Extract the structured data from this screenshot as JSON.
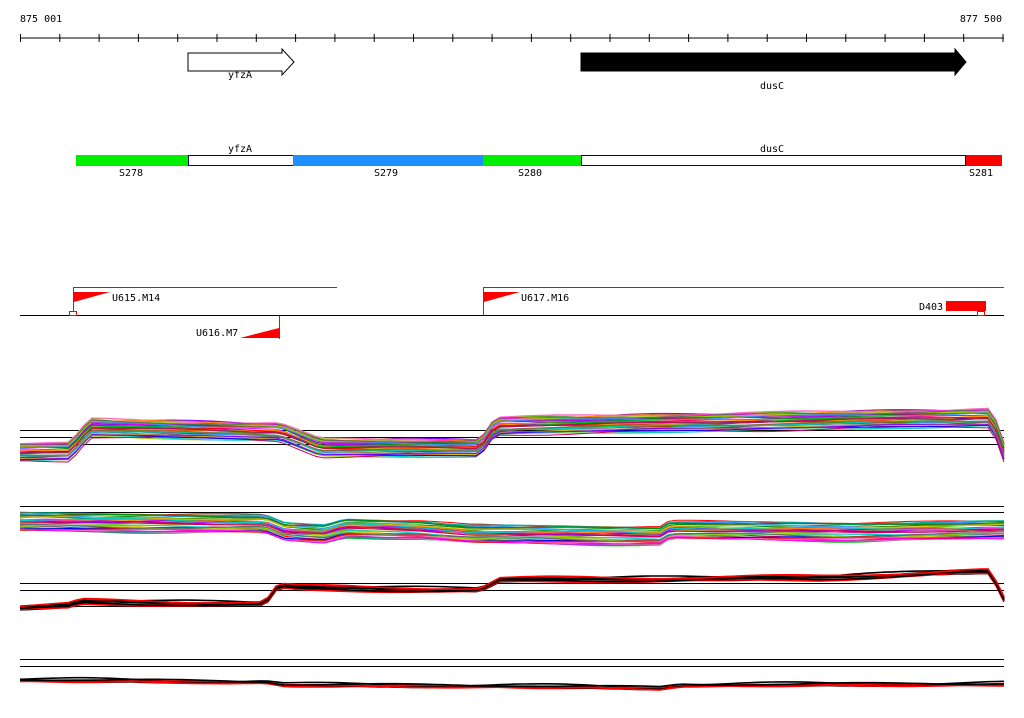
{
  "ruler": {
    "start_label": "875 001",
    "end_label": "877 500",
    "start": 875001,
    "end": 877500
  },
  "genes": [
    {
      "name": "yfzA",
      "strand": "+",
      "filled": false
    },
    {
      "name": "dusC",
      "strand": "+",
      "filled": true
    }
  ],
  "segments": [
    {
      "label": "S278",
      "color": "#00ee00"
    },
    {
      "label": "yfzA",
      "color": "#ffffff",
      "gene": true
    },
    {
      "label": "S279",
      "color": "#1e90ff"
    },
    {
      "label": "S280",
      "color": "#00ee00"
    },
    {
      "label": "dusC",
      "color": "#ffffff",
      "gene": true
    },
    {
      "label": "S281",
      "color": "#ff0000"
    }
  ],
  "features": [
    {
      "label": "U615.M14"
    },
    {
      "label": "U617.M16"
    },
    {
      "label": "U616.M7"
    },
    {
      "label": "D403"
    }
  ],
  "colors": {
    "accent": "#ff0000",
    "line": "#000000",
    "segment_border": "#000080"
  }
}
